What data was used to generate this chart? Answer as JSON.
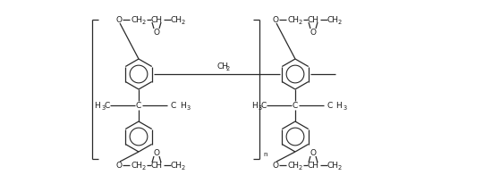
{
  "figsize": [
    5.5,
    1.96
  ],
  "dpi": 100,
  "bg_color": "#ffffff",
  "line_color": "#2a2a2a",
  "text_color": "#1a1a1a",
  "line_width": 0.9,
  "font_size": 6.5,
  "sub_font_size": 4.8,
  "xlim": [
    0,
    550
  ],
  "ylim": [
    0,
    196
  ]
}
